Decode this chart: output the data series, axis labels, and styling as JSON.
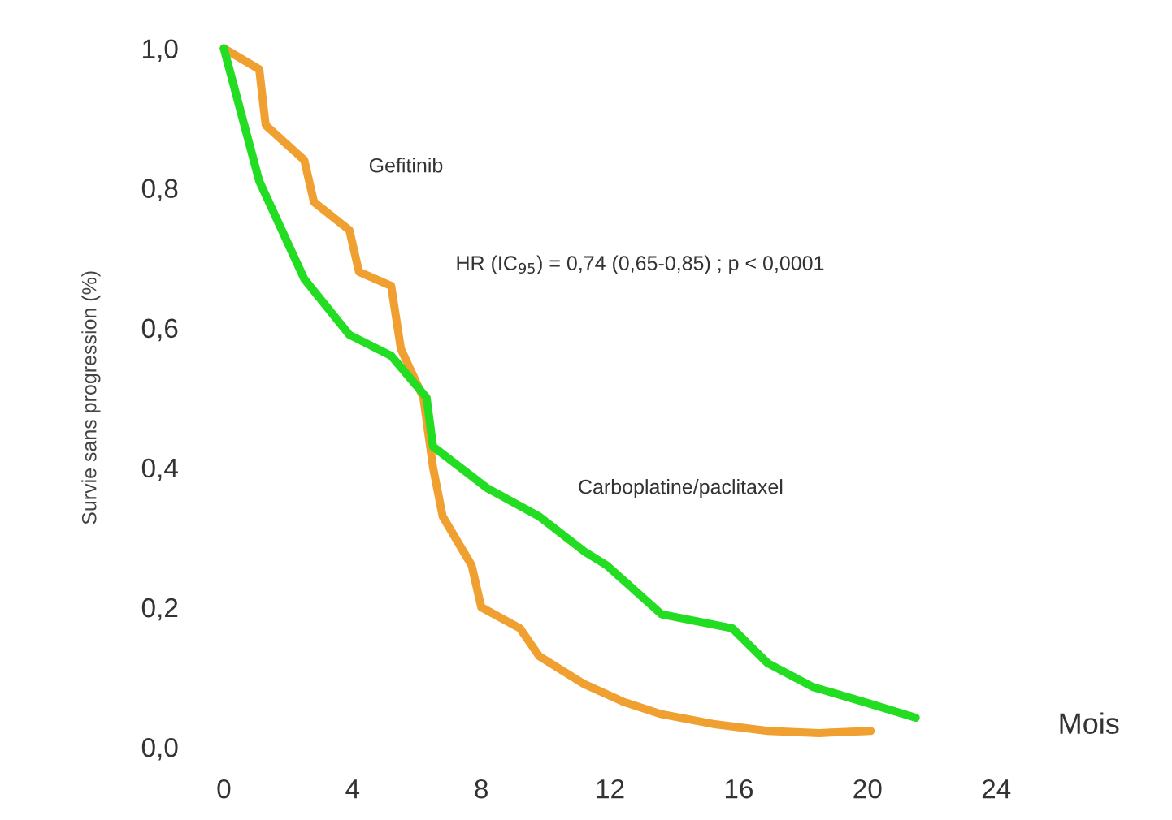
{
  "chart_data": {
    "type": "line",
    "xlabel": "Mois",
    "ylabel": "Survie sans progression (%)",
    "xlim": [
      0,
      24
    ],
    "ylim": [
      0,
      1.0
    ],
    "xticks": [
      0,
      4,
      8,
      12,
      16,
      20,
      24
    ],
    "yticks": [
      {
        "value": 0,
        "label": "0,0"
      },
      {
        "value": 0.2,
        "label": "0,2"
      },
      {
        "value": 0.4,
        "label": "0,4"
      },
      {
        "value": 0.6,
        "label": "0,6"
      },
      {
        "value": 0.8,
        "label": "0,8"
      },
      {
        "value": 1.0,
        "label": "1,0"
      }
    ],
    "grid": false,
    "legend": false,
    "marker": "none",
    "line_style": "solid",
    "annotations": [
      "HR (IC$_{95}$) = 0,74 (0,65-0,85) ; p < 0,0001"
    ],
    "series": [
      {
        "name": "Gefitinib",
        "color": "#f0a030",
        "x": [
          0,
          1.1,
          1.3,
          2.5,
          2.8,
          3.9,
          4.2,
          5.2,
          5.5,
          6.2,
          6.5,
          6.8,
          7.7,
          8.0,
          9.2,
          9.8,
          11.2,
          12.4,
          13.6,
          15.2,
          16.9,
          18.5,
          20.1
        ],
        "values": [
          1.0,
          0.97,
          0.89,
          0.84,
          0.78,
          0.74,
          0.68,
          0.66,
          0.57,
          0.5,
          0.4,
          0.33,
          0.26,
          0.2,
          0.17,
          0.13,
          0.09,
          0.065,
          0.047,
          0.033,
          0.023,
          0.02,
          0.023
        ]
      },
      {
        "name": "Carboplatine/paclitaxel",
        "color": "#22dd22",
        "x": [
          0,
          1.1,
          2.5,
          3.9,
          5.2,
          6.3,
          6.5,
          8.2,
          9.8,
          11.2,
          11.9,
          13.6,
          15.8,
          16.9,
          18.3,
          20.0,
          21.5
        ],
        "values": [
          1.0,
          0.81,
          0.67,
          0.59,
          0.56,
          0.5,
          0.43,
          0.37,
          0.33,
          0.28,
          0.26,
          0.19,
          0.17,
          0.12,
          0.086,
          0.063,
          0.042
        ]
      }
    ]
  }
}
